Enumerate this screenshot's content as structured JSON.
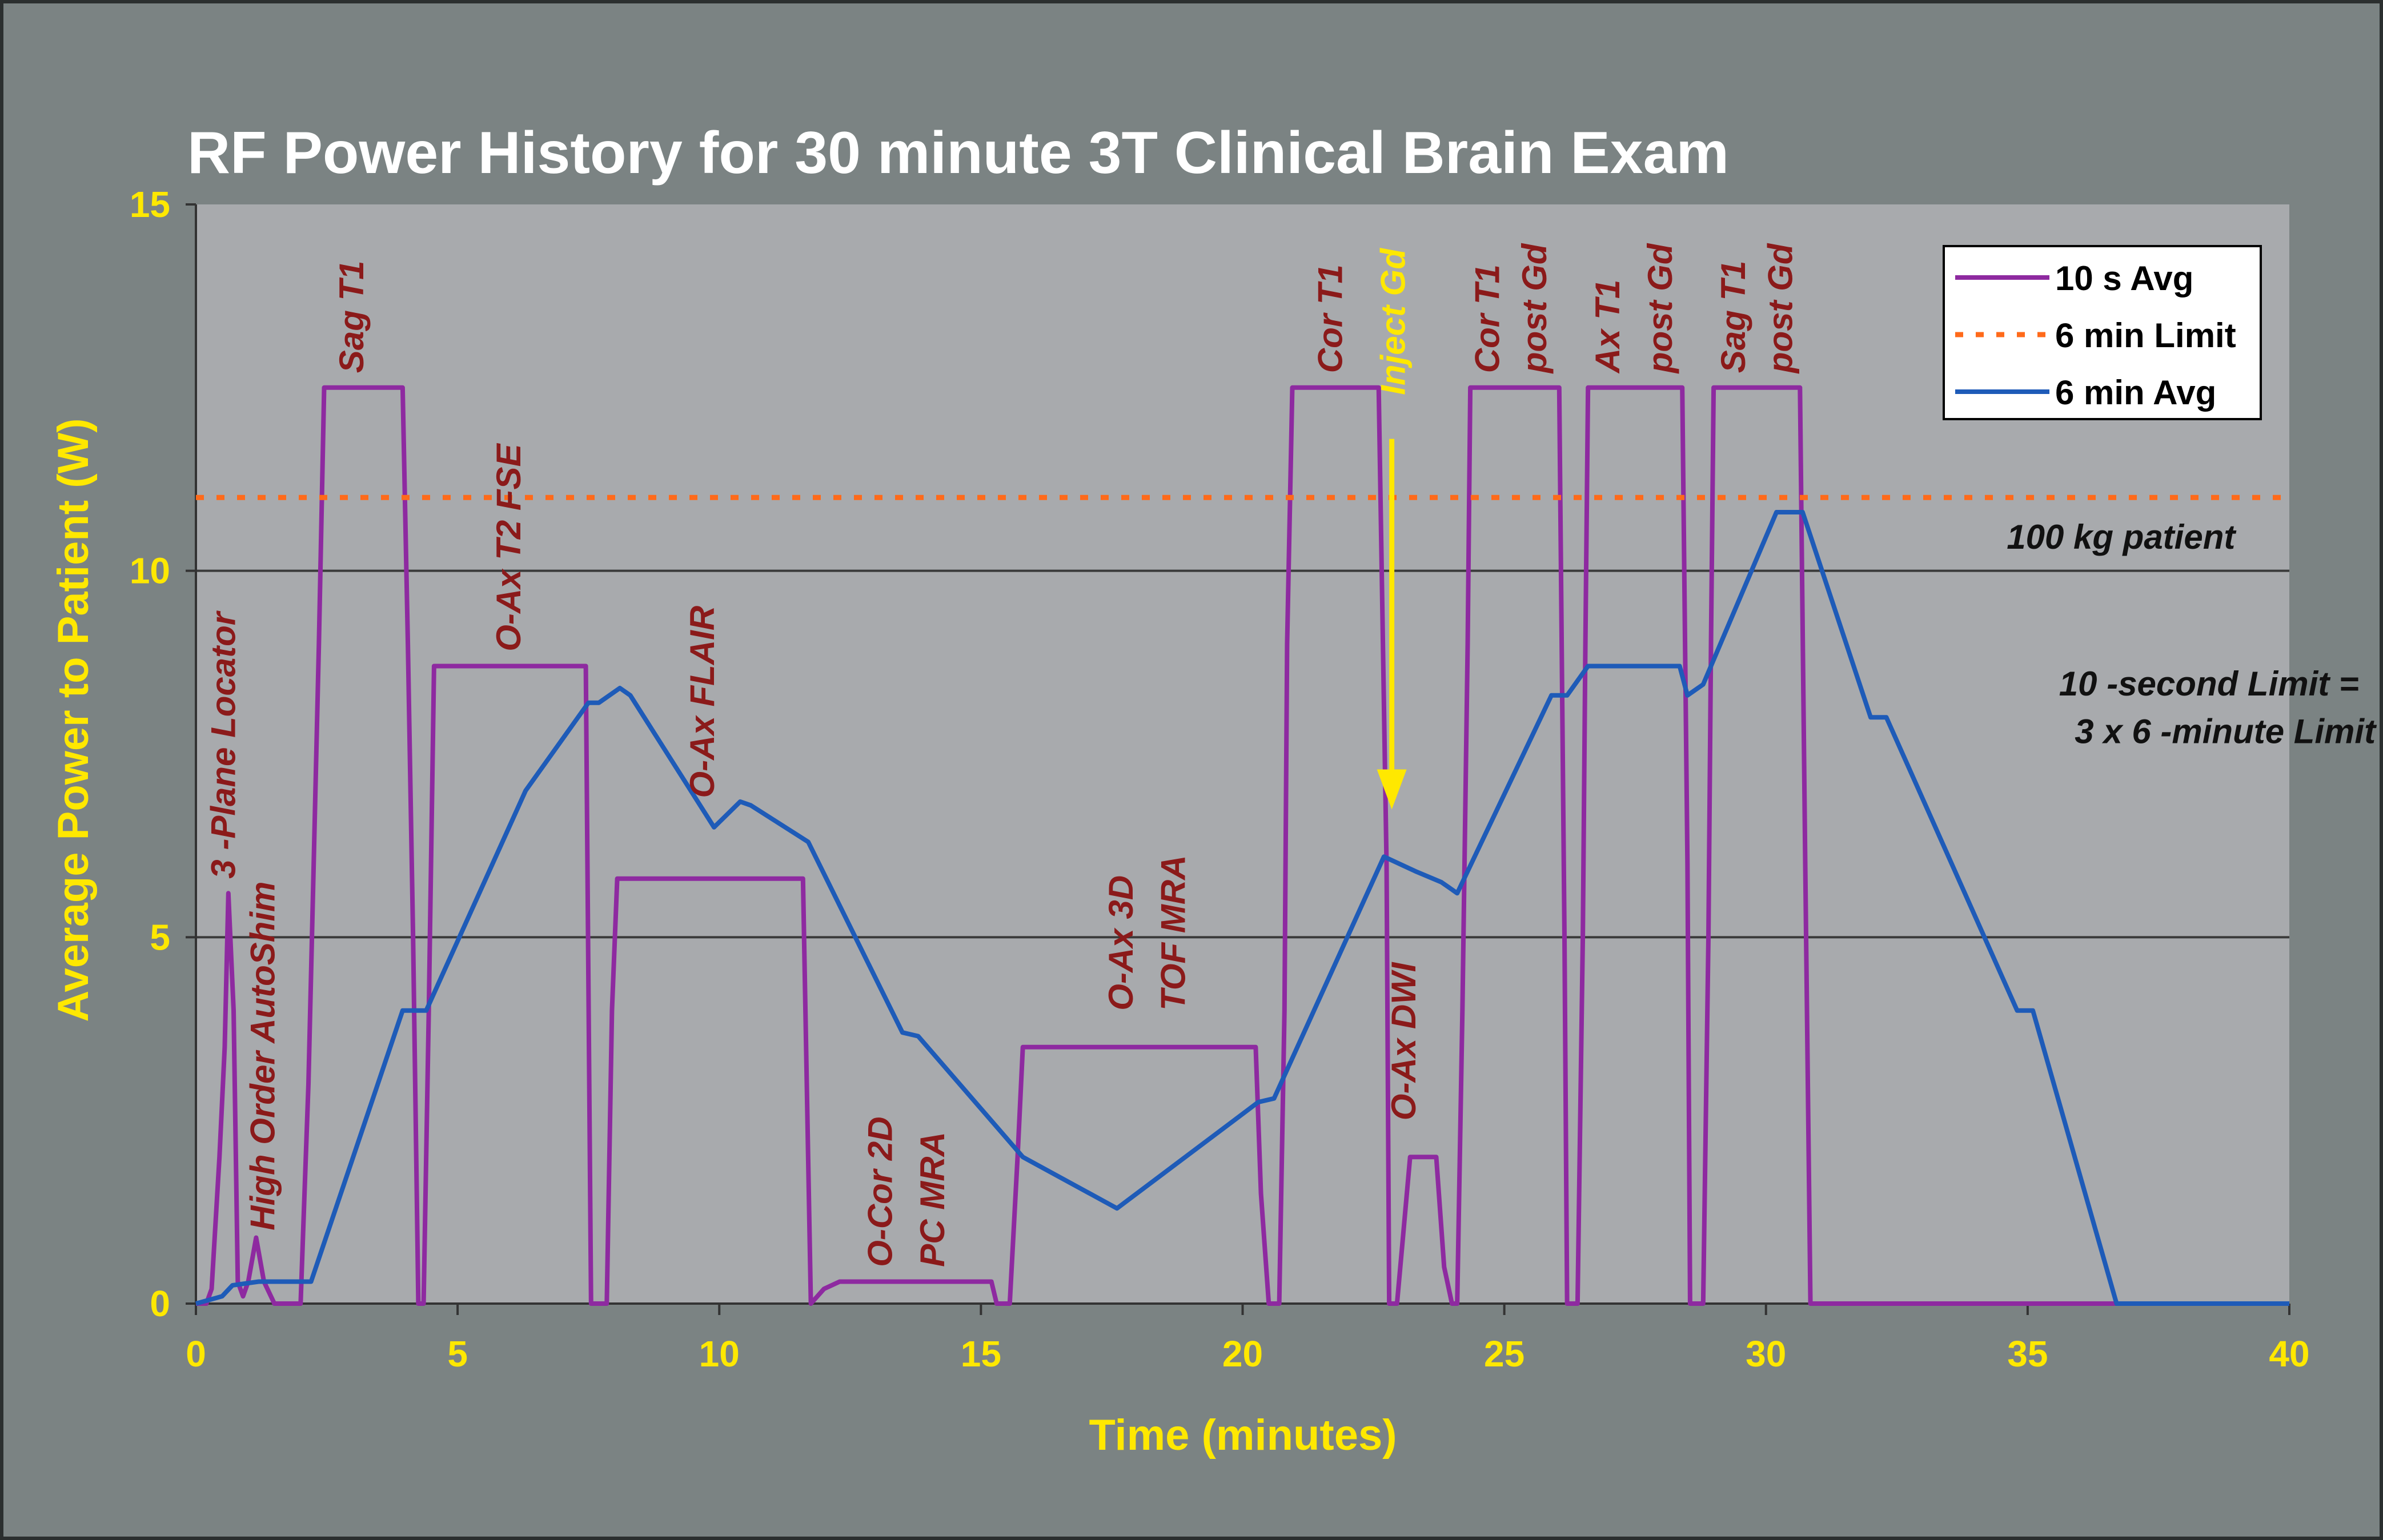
{
  "chart_data": {
    "type": "line",
    "title": "RF Power History for 30 minute 3T Clinical Brain Exam",
    "xlabel": "Time (minutes)",
    "ylabel": "Average Power to Patient (W)",
    "xlim": [
      0,
      40
    ],
    "ylim": [
      0,
      15
    ],
    "xticks": [
      "0",
      "5",
      "10",
      "15",
      "20",
      "25",
      "30",
      "35",
      "40"
    ],
    "yticks": [
      "0",
      "5",
      "10",
      "15"
    ],
    "grid": "horizontal",
    "legend_position": "top-right",
    "colors": {
      "avg10s": "#8e2aa0",
      "limit": "#ff6a1a",
      "avg6min": "#1e5bb8",
      "plot_bg": "#a8aaad",
      "page_bg": "#7b8383"
    },
    "series": [
      {
        "name": "10 s Avg",
        "style": "solid",
        "color": "#8e2aa0",
        "points": [
          [
            0.0,
            0
          ],
          [
            0.2,
            0
          ],
          [
            0.3,
            0.2
          ],
          [
            0.45,
            2.0
          ],
          [
            0.55,
            3.5
          ],
          [
            0.62,
            5.6
          ],
          [
            0.72,
            4.0
          ],
          [
            0.8,
            0.3
          ],
          [
            0.9,
            0.1
          ],
          [
            1.0,
            0.3
          ],
          [
            1.15,
            0.9
          ],
          [
            1.3,
            0.3
          ],
          [
            1.5,
            0
          ],
          [
            2.0,
            0
          ],
          [
            2.05,
            1.0
          ],
          [
            2.15,
            3.0
          ],
          [
            2.25,
            6.0
          ],
          [
            2.35,
            9.0
          ],
          [
            2.45,
            12.5
          ],
          [
            3.95,
            12.5
          ],
          [
            4.05,
            9.0
          ],
          [
            4.15,
            5.0
          ],
          [
            4.25,
            0
          ],
          [
            4.35,
            0
          ],
          [
            4.45,
            4.0
          ],
          [
            4.55,
            8.7
          ],
          [
            7.45,
            8.7
          ],
          [
            7.55,
            0
          ],
          [
            7.85,
            0
          ],
          [
            7.95,
            4.0
          ],
          [
            8.05,
            5.8
          ],
          [
            11.6,
            5.8
          ],
          [
            11.75,
            0
          ],
          [
            12.0,
            0.2
          ],
          [
            12.3,
            0.3
          ],
          [
            15.2,
            0.3
          ],
          [
            15.3,
            0
          ],
          [
            15.55,
            0
          ],
          [
            15.7,
            2.0
          ],
          [
            15.8,
            3.5
          ],
          [
            20.25,
            3.5
          ],
          [
            20.35,
            1.5
          ],
          [
            20.5,
            0
          ],
          [
            20.7,
            0
          ],
          [
            20.8,
            4.0
          ],
          [
            20.85,
            9.0
          ],
          [
            20.95,
            12.5
          ],
          [
            22.6,
            12.5
          ],
          [
            22.75,
            6.0
          ],
          [
            22.8,
            0
          ],
          [
            22.95,
            0
          ],
          [
            23.05,
            0.8
          ],
          [
            23.2,
            2.0
          ],
          [
            23.7,
            2.0
          ],
          [
            23.85,
            0.5
          ],
          [
            24.0,
            0
          ],
          [
            24.1,
            0
          ],
          [
            24.2,
            4.0
          ],
          [
            24.3,
            9.0
          ],
          [
            24.35,
            12.5
          ],
          [
            26.05,
            12.5
          ],
          [
            26.15,
            5.0
          ],
          [
            26.2,
            0
          ],
          [
            26.4,
            0
          ],
          [
            26.5,
            5.0
          ],
          [
            26.55,
            9.0
          ],
          [
            26.6,
            12.5
          ],
          [
            28.4,
            12.5
          ],
          [
            28.5,
            6.0
          ],
          [
            28.55,
            0
          ],
          [
            28.8,
            0
          ],
          [
            28.9,
            5.0
          ],
          [
            28.95,
            9.0
          ],
          [
            29.0,
            12.5
          ],
          [
            30.65,
            12.5
          ],
          [
            30.75,
            6.0
          ],
          [
            30.85,
            0
          ],
          [
            40.0,
            0
          ]
        ]
      },
      {
        "name": "6 min Limit",
        "style": "dotted",
        "color": "#ff6a1a",
        "points": [
          [
            0,
            11.0
          ],
          [
            40,
            11.0
          ]
        ]
      },
      {
        "name": "6 min Avg",
        "style": "solid",
        "color": "#1e5bb8",
        "points": [
          [
            0.0,
            0
          ],
          [
            0.5,
            0.1
          ],
          [
            0.7,
            0.25
          ],
          [
            1.2,
            0.3
          ],
          [
            2.2,
            0.3
          ],
          [
            3.95,
            4.0
          ],
          [
            4.4,
            4.0
          ],
          [
            6.3,
            7.0
          ],
          [
            6.7,
            7.4
          ],
          [
            7.5,
            8.2
          ],
          [
            7.7,
            8.2
          ],
          [
            8.1,
            8.4
          ],
          [
            8.3,
            8.3
          ],
          [
            9.9,
            6.5
          ],
          [
            10.4,
            6.85
          ],
          [
            10.6,
            6.8
          ],
          [
            11.7,
            6.3
          ],
          [
            13.5,
            3.7
          ],
          [
            13.8,
            3.65
          ],
          [
            15.8,
            2.0
          ],
          [
            17.6,
            1.3
          ],
          [
            20.3,
            2.75
          ],
          [
            20.6,
            2.8
          ],
          [
            22.7,
            6.1
          ],
          [
            23.3,
            5.9
          ],
          [
            23.8,
            5.75
          ],
          [
            24.1,
            5.6
          ],
          [
            25.9,
            8.3
          ],
          [
            26.2,
            8.3
          ],
          [
            26.6,
            8.7
          ],
          [
            28.35,
            8.7
          ],
          [
            28.5,
            8.3
          ],
          [
            28.8,
            8.45
          ],
          [
            30.2,
            10.8
          ],
          [
            30.7,
            10.8
          ],
          [
            32.0,
            8.0
          ],
          [
            32.3,
            8.0
          ],
          [
            34.8,
            4.0
          ],
          [
            35.1,
            4.0
          ],
          [
            36.7,
            0
          ],
          [
            40.0,
            0
          ]
        ]
      }
    ],
    "annotations": [
      {
        "text": "3 -Plane Locator",
        "x": 0.75,
        "y": 5.8,
        "rotate": -90,
        "color": "maroon"
      },
      {
        "text": "High Order AutoShim",
        "x": 1.5,
        "y": 1.0,
        "rotate": -90,
        "color": "maroon"
      },
      {
        "text": "Sag T1",
        "x": 3.2,
        "y": 12.7,
        "rotate": -90,
        "color": "maroon"
      },
      {
        "text": "O-Ax T2 FSE",
        "x": 6.2,
        "y": 8.9,
        "rotate": -90,
        "color": "maroon"
      },
      {
        "text": "O-Ax FLAIR",
        "x": 9.9,
        "y": 6.9,
        "rotate": -90,
        "color": "maroon"
      },
      {
        "text": "O-Cor 2D",
        "x": 13.3,
        "y": 0.5,
        "rotate": -90,
        "color": "maroon"
      },
      {
        "text": "PC MRA",
        "x": 14.3,
        "y": 0.5,
        "rotate": -90,
        "color": "maroon"
      },
      {
        "text": "O-Ax 3D",
        "x": 17.9,
        "y": 4.0,
        "rotate": -90,
        "color": "maroon"
      },
      {
        "text": "TOF MRA",
        "x": 18.9,
        "y": 4.0,
        "rotate": -90,
        "color": "maroon"
      },
      {
        "text": "Cor T1",
        "x": 21.9,
        "y": 12.7,
        "rotate": -90,
        "color": "maroon"
      },
      {
        "text": "Inject Gd",
        "x": 23.1,
        "y": 12.4,
        "rotate": -90,
        "color": "yellow"
      },
      {
        "text": "O-Ax DWI",
        "x": 23.3,
        "y": 2.5,
        "rotate": -90,
        "color": "maroon"
      },
      {
        "text": "Cor T1",
        "x": 24.9,
        "y": 12.7,
        "rotate": -90,
        "color": "maroon"
      },
      {
        "text": "post Gd",
        "x": 25.8,
        "y": 12.7,
        "rotate": -90,
        "color": "maroon"
      },
      {
        "text": "Ax T1",
        "x": 27.2,
        "y": 12.7,
        "rotate": -90,
        "color": "maroon"
      },
      {
        "text": "post Gd",
        "x": 28.2,
        "y": 12.7,
        "rotate": -90,
        "color": "maroon"
      },
      {
        "text": "Sag T1",
        "x": 29.6,
        "y": 12.7,
        "rotate": -90,
        "color": "maroon"
      },
      {
        "text": "post Gd",
        "x": 30.5,
        "y": 12.7,
        "rotate": -90,
        "color": "maroon"
      },
      {
        "text": "100  kg patient",
        "x": 34.6,
        "y": 10.3,
        "rotate": 0,
        "color": "dark"
      },
      {
        "text": "10 -second Limit =",
        "x": 35.6,
        "y": 8.3,
        "rotate": 0,
        "color": "dark"
      },
      {
        "text": "3  x  6 -minute Limit",
        "x": 35.9,
        "y": 7.65,
        "rotate": 0,
        "color": "dark"
      }
    ],
    "arrow": {
      "from": [
        22.85,
        11.8
      ],
      "to": [
        22.85,
        6.9
      ],
      "color": "#ffe800"
    }
  }
}
